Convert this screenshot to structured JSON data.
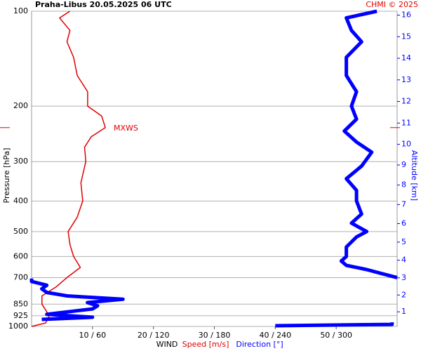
{
  "chart_data": {
    "type": "profile",
    "title": "Praha-Libus   20.05.2025 06 UTC",
    "credit": "CHMI © 2025",
    "y_label": "Pressure [hPa]",
    "y2_label": "Altitude [km]",
    "x_label": "WIND",
    "log_y": true,
    "grid": true,
    "ylim": [
      1000,
      100
    ],
    "yticks": [
      100,
      200,
      300,
      400,
      500,
      600,
      700,
      850,
      925,
      1000
    ],
    "y2ticks": [
      1,
      2,
      3,
      4,
      5,
      6,
      7,
      8,
      9,
      10,
      11,
      12,
      13,
      14,
      15,
      16
    ],
    "y2_color": "#0000ff",
    "xlim": [
      0,
      60
    ],
    "x2lim": [
      0,
      360
    ],
    "xticks": [
      {
        "value": 10,
        "label": "10 / 60"
      },
      {
        "value": 20,
        "label": "20 / 120"
      },
      {
        "value": 30,
        "label": "30 / 180"
      },
      {
        "value": 40,
        "label": "40 / 240"
      },
      {
        "value": 50,
        "label": "50 / 300"
      }
    ],
    "mxws": {
      "label": "MXWS",
      "pressure": 234,
      "color": "#e00000"
    },
    "series": [
      {
        "name": "Speed [m/s]",
        "color": "#e00000",
        "axis": "x",
        "pressure": [
          1000,
          975,
          925,
          850,
          800,
          750,
          700,
          650,
          600,
          550,
          500,
          450,
          400,
          350,
          300,
          270,
          250,
          234,
          215,
          200,
          180,
          160,
          140,
          125,
          115,
          105,
          100
        ],
        "values": [
          0,
          2.3,
          2.9,
          1.7,
          1.7,
          4,
          5.8,
          8,
          6.9,
          6.3,
          6,
          7.5,
          8.4,
          8.1,
          8.9,
          8.7,
          9.8,
          12.1,
          11.5,
          9.2,
          9.2,
          7.5,
          6.9,
          5.8,
          6.3,
          4.6,
          6.3
        ]
      },
      {
        "name": "Direction [°]",
        "color": "#0000ff",
        "axis": "x2",
        "pressure": [
          995,
          985,
          970,
          960,
          950,
          935,
          915,
          880,
          860,
          840,
          820,
          800,
          780,
          760,
          740,
          720,
          705,
          702,
          700,
          680,
          660,
          640,
          620,
          600,
          560,
          520,
          500,
          470,
          440,
          400,
          370,
          340,
          310,
          280,
          260,
          240,
          220,
          200,
          180,
          160,
          140,
          125,
          115,
          105,
          100
        ],
        "values": [
          240,
          355,
          355,
          null,
          10,
          60,
          15,
          60,
          65,
          55,
          90,
          35,
          15,
          10,
          15,
          0,
          0,
          null,
          360,
          345,
          330,
          310,
          305,
          310,
          310,
          320,
          330,
          315,
          325,
          320,
          320,
          310,
          325,
          335,
          320,
          308,
          320,
          315,
          320,
          310,
          310,
          325,
          315,
          310,
          340
        ]
      }
    ]
  }
}
